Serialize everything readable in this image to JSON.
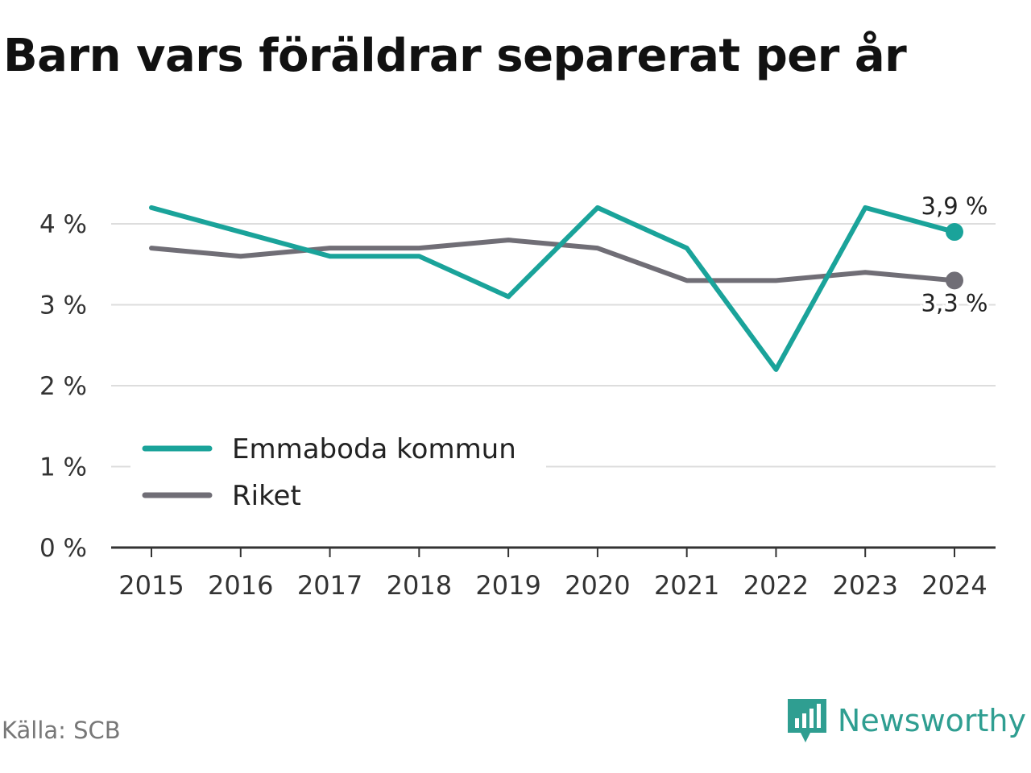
{
  "title": "Barn vars föräldrar separerat per år",
  "source": "Källa: SCB",
  "brand": {
    "name": "Newsworthy",
    "icon": "newsworthy-logo-icon",
    "color": "#2f9e91"
  },
  "chart_data": {
    "type": "line",
    "title": "Barn vars föräldrar separerat per år",
    "x": [
      "2015",
      "2016",
      "2017",
      "2018",
      "2019",
      "2020",
      "2021",
      "2022",
      "2023",
      "2024"
    ],
    "series": [
      {
        "name": "Emmaboda kommun",
        "color": "#1aa39a",
        "values": [
          4.2,
          3.9,
          3.6,
          3.6,
          3.1,
          4.2,
          3.7,
          2.2,
          4.2,
          3.9
        ],
        "end_label": "3,9 %"
      },
      {
        "name": "Riket",
        "color": "#706e76",
        "values": [
          3.7,
          3.6,
          3.7,
          3.7,
          3.8,
          3.7,
          3.3,
          3.3,
          3.4,
          3.3
        ],
        "end_label": "3,3 %"
      }
    ],
    "ylim": [
      0,
      4
    ],
    "yticks": [
      0,
      1,
      2,
      3,
      4
    ],
    "ytick_labels": [
      "0 %",
      "1 %",
      "2 %",
      "3 %",
      "4 %"
    ],
    "grid": true,
    "legend": "bottom-left"
  }
}
